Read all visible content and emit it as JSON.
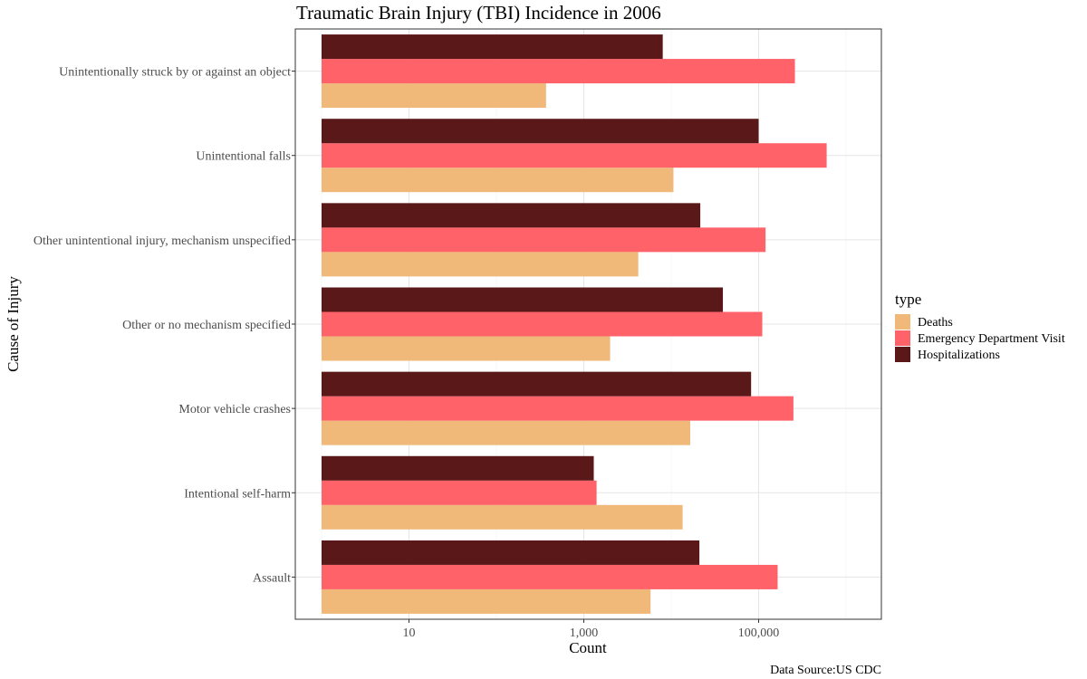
{
  "chart_data": {
    "type": "bar",
    "orientation": "horizontal",
    "title": "Traumatic Brain Injury (TBI) Incidence in 2006",
    "xlabel": "Count",
    "ylabel": "Cause of Injury",
    "caption": "Data Source:US CDC",
    "x_scale": "log10",
    "xlim": [
      1,
      1000000
    ],
    "x_ticks": [
      10,
      1000,
      100000
    ],
    "x_tick_labels": [
      "10",
      "1,000",
      "100,000"
    ],
    "grid": true,
    "legend": {
      "title": "type",
      "position": "right"
    },
    "categories": [
      "Assault",
      "Intentional self-harm",
      "Motor vehicle crashes",
      "Other or no mechanism specified",
      "Other unintentional injury, mechanism unspecified",
      "Unintentional falls",
      "Unintentionally struck by or against an object"
    ],
    "series": [
      {
        "name": "Deaths",
        "color": "#f0b97a",
        "values": [
          5800,
          13500,
          16500,
          2000,
          4200,
          10600,
          370
        ]
      },
      {
        "name": "Emergency Department Visit",
        "color": "#ff6269",
        "values": [
          165000,
          1400,
          250000,
          110000,
          120000,
          600000,
          260000
        ]
      },
      {
        "name": "Hospitalizations",
        "color": "#5a1818",
        "values": [
          21000,
          1300,
          82000,
          39000,
          21500,
          100000,
          8000
        ]
      }
    ]
  }
}
